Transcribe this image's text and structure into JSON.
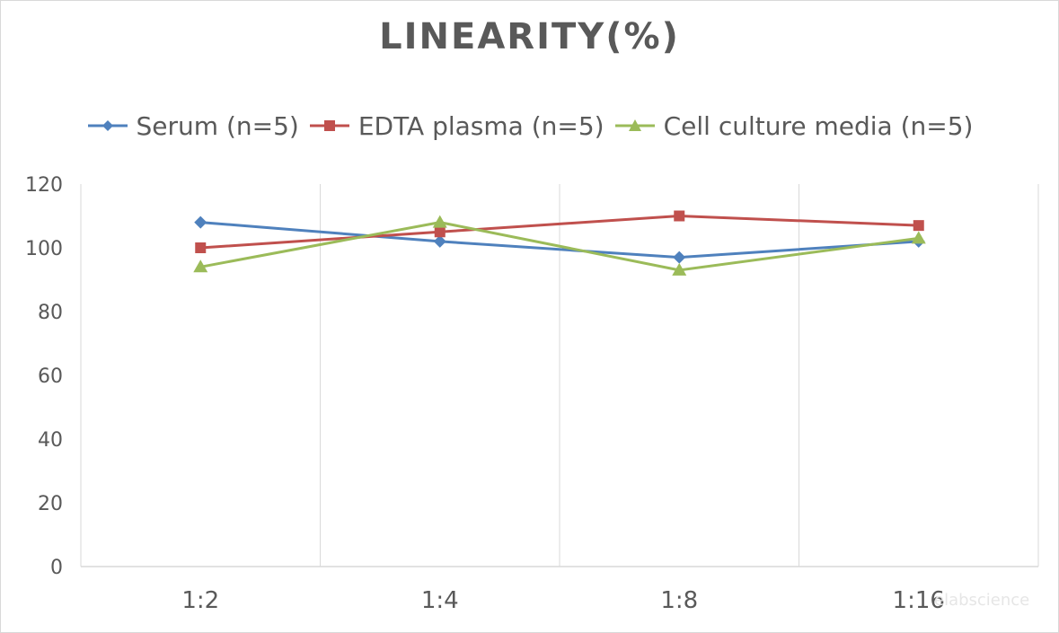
{
  "chart_data": {
    "type": "line",
    "title": "LINEARITY(%)",
    "categories": [
      "1:2",
      "1:4",
      "1:8",
      "1:16"
    ],
    "series": [
      {
        "name": "Serum (n=5)",
        "values": [
          108,
          102,
          97,
          102
        ],
        "color": "#4f81bd",
        "marker": "diamond"
      },
      {
        "name": "EDTA plasma (n=5)",
        "values": [
          100,
          105,
          110,
          107
        ],
        "color": "#c0504d",
        "marker": "square"
      },
      {
        "name": "Cell culture media (n=5)",
        "values": [
          94,
          108,
          93,
          103
        ],
        "color": "#9bbb59",
        "marker": "triangle"
      }
    ],
    "yticks": [
      "0",
      "20",
      "40",
      "60",
      "80",
      "100",
      "120"
    ],
    "ylim": [
      0,
      120
    ],
    "legend_position": "top",
    "grid": "vertical"
  },
  "watermark": "elabscience"
}
